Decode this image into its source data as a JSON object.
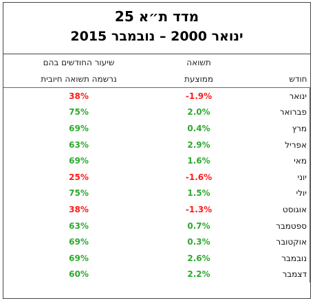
{
  "header": {
    "title": "מדד ת״א 25",
    "subtitle": "ינואר 2000 – נובמבר 2015"
  },
  "table": {
    "columns": {
      "month": "חודש",
      "avg_return": [
        "תשואה",
        "ממוצעת"
      ],
      "positive_share": [
        "שיעור החודשים בהם",
        "נרשמה תשואה חיובית"
      ]
    },
    "rows": [
      [
        "ינואר",
        "-1.9%",
        "38%"
      ],
      [
        "פברואר",
        "2.0%",
        "75%"
      ],
      [
        "מרץ",
        "0.4%",
        "69%"
      ],
      [
        "אפריל",
        "2.9%",
        "63%"
      ],
      [
        "מאי",
        "1.6%",
        "69%"
      ],
      [
        "יוני",
        "-1.6%",
        "25%"
      ],
      [
        "יולי",
        "1.5%",
        "75%"
      ],
      [
        "אוגוסט",
        "-1.3%",
        "38%"
      ],
      [
        "ספטמבר",
        "0.7%",
        "63%"
      ],
      [
        "אוקטובר",
        "0.3%",
        "69%"
      ],
      [
        "נובמבר",
        "2.6%",
        "69%"
      ],
      [
        "דצמבר",
        "2.2%",
        "60%"
      ]
    ],
    "row_colors": [
      "#ff1a1a",
      "#2ea82e",
      "#2ea82e",
      "#2ea82e",
      "#2ea82e",
      "#ff1a1a",
      "#2ea82e",
      "#ff1a1a",
      "#2ea82e",
      "#2ea82e",
      "#2ea82e",
      "#2ea82e"
    ]
  }
}
